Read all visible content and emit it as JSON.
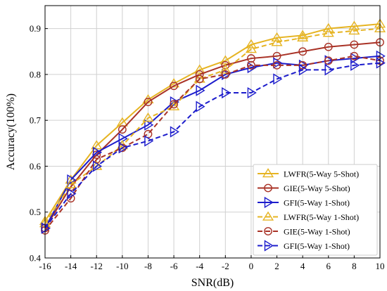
{
  "chart_data": {
    "type": "line",
    "xlabel": "SNR(dB)",
    "ylabel": "Accuracy(100%)",
    "xlim": [
      -16,
      10
    ],
    "ylim": [
      0.4,
      0.95
    ],
    "grid": true,
    "legend_position": "bottom-right",
    "x": [
      -16,
      -14,
      -12,
      -10,
      -8,
      -6,
      -4,
      -2,
      0,
      2,
      4,
      6,
      8,
      10
    ],
    "xticks": [
      "-16",
      "-14",
      "-12",
      "-10",
      "-8",
      "-6",
      "-4",
      "-2",
      "0",
      "2",
      "4",
      "6",
      "8",
      "10"
    ],
    "yticks": [
      "0.4",
      "0.5",
      "0.6",
      "0.7",
      "0.8",
      "0.9"
    ],
    "ytick_values": [
      0.4,
      0.5,
      0.6,
      0.7,
      0.8,
      0.9
    ],
    "series": [
      {
        "name": "LWFR(5-Way 5-Shot)",
        "color": "#e6b422",
        "style": "solid",
        "marker": "triangle-up",
        "values": [
          0.48,
          0.57,
          0.645,
          0.695,
          0.745,
          0.78,
          0.81,
          0.83,
          0.865,
          0.88,
          0.885,
          0.9,
          0.905,
          0.91
        ]
      },
      {
        "name": "GIE(5-Way 5-Shot)",
        "color": "#a93226",
        "style": "solid",
        "marker": "circle",
        "values": [
          0.465,
          0.555,
          0.625,
          0.68,
          0.74,
          0.775,
          0.8,
          0.82,
          0.835,
          0.84,
          0.85,
          0.86,
          0.865,
          0.87
        ]
      },
      {
        "name": "GFI(5-Way 1-Shot)",
        "color": "#1c1ccc",
        "style": "solid",
        "marker": "triangle-right",
        "values": [
          0.465,
          0.57,
          0.63,
          0.66,
          0.69,
          0.74,
          0.765,
          0.8,
          0.815,
          0.825,
          0.82,
          0.83,
          0.835,
          0.84
        ]
      },
      {
        "name": "LWFR(5-Way 1-Shot)",
        "color": "#e6b422",
        "style": "dashed",
        "marker": "triangle-up",
        "values": [
          0.475,
          0.56,
          0.6,
          0.645,
          0.705,
          0.73,
          0.79,
          0.81,
          0.855,
          0.87,
          0.88,
          0.89,
          0.895,
          0.9
        ]
      },
      {
        "name": "GIE(5-Way 1-Shot)",
        "color": "#a93226",
        "style": "dashed",
        "marker": "circle",
        "values": [
          0.46,
          0.53,
          0.615,
          0.64,
          0.67,
          0.735,
          0.79,
          0.8,
          0.82,
          0.82,
          0.82,
          0.83,
          0.84,
          0.83
        ]
      },
      {
        "name": "GFI(5-Way 1-Shot)",
        "color": "#1c1ccc",
        "style": "dashed",
        "marker": "triangle-right",
        "values": [
          0.465,
          0.54,
          0.6,
          0.64,
          0.655,
          0.675,
          0.73,
          0.76,
          0.76,
          0.79,
          0.81,
          0.81,
          0.82,
          0.825
        ]
      }
    ]
  }
}
